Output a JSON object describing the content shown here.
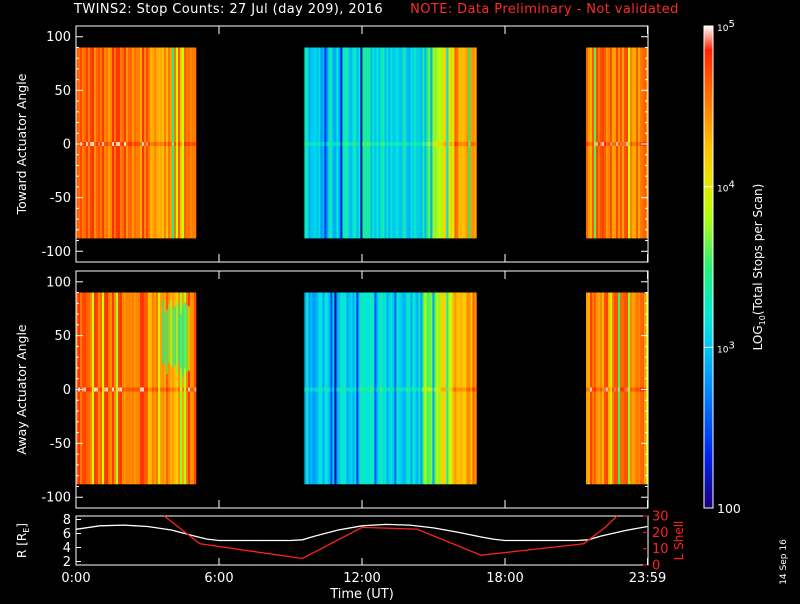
{
  "header": {
    "title": "TWINS2: Stop Counts: 27 Jul (day 209), 2016",
    "note": "NOTE: Data Preliminary - Not validated",
    "note_color": "#ff2a2a"
  },
  "colorbar": {
    "label": "LOG",
    "label_sub": "10",
    "label_rest": "(Total Stops per Scan)",
    "ticks": [
      {
        "value": 100,
        "text": "100"
      },
      {
        "value": 1000,
        "text": "10",
        "sup": "3"
      },
      {
        "value": 10000,
        "text": "10",
        "sup": "4"
      },
      {
        "value": 100000,
        "text": "10",
        "sup": "5"
      }
    ],
    "range": [
      100,
      100000
    ],
    "scale": "log"
  },
  "stamp": "14 Sep 16",
  "chart_data": [
    {
      "type": "heatmap",
      "ylabel": "Toward Actuator Angle",
      "ylim": [
        -110,
        110
      ],
      "yticks": [
        -100,
        -50,
        0,
        50,
        100
      ],
      "x_range_hours": [
        0,
        24
      ],
      "data_y_range": [
        -88,
        90
      ],
      "data_segments_hours": [
        [
          -0.2,
          5.0
        ],
        [
          9.5,
          16.8
        ],
        [
          21.4,
          24.0
        ]
      ],
      "value_range": [
        100,
        100000
      ],
      "colormap": "rainbow",
      "scale": "log"
    },
    {
      "type": "heatmap",
      "ylabel": "Away Actuator Angle",
      "ylim": [
        -110,
        110
      ],
      "yticks": [
        -100,
        -50,
        0,
        50,
        100
      ],
      "x_range_hours": [
        0,
        24
      ],
      "data_y_range": [
        -88,
        90
      ],
      "data_segments_hours": [
        [
          -0.2,
          5.0
        ],
        [
          9.5,
          16.8
        ],
        [
          21.4,
          24.0
        ]
      ],
      "value_range": [
        100,
        100000
      ],
      "colormap": "rainbow",
      "scale": "log"
    },
    {
      "type": "line",
      "xlabel": "Time (UT)",
      "x_ticks": [
        {
          "value": 0,
          "text": "0:00"
        },
        {
          "value": 6,
          "text": "6:00"
        },
        {
          "value": 12,
          "text": "12:00"
        },
        {
          "value": 18,
          "text": "18:00"
        },
        {
          "value": 23.98,
          "text": "23:59"
        }
      ],
      "left_axis": {
        "label": "R [R",
        "label_sub": "E",
        "label_end": "]",
        "ylim": [
          1.5,
          8.5
        ],
        "ticks": [
          2,
          4,
          6,
          8
        ],
        "color": "#ffffff"
      },
      "right_axis": {
        "label": "L Shell",
        "ylim": [
          0,
          30
        ],
        "ticks": [
          0,
          10,
          20,
          30
        ],
        "color": "#ff2020"
      },
      "series": [
        {
          "axis": "left",
          "color": "#ffffff",
          "x": [
            0,
            1,
            2,
            3,
            4,
            5,
            5.5,
            6,
            7,
            8,
            9,
            9.5,
            10,
            11,
            12,
            13,
            14,
            15,
            16,
            17,
            17.5,
            18,
            19,
            20,
            21,
            21.5,
            22,
            23,
            23.98
          ],
          "y": [
            6.6,
            7.1,
            7.2,
            7.0,
            6.5,
            5.6,
            5.2,
            5.0,
            5.0,
            5.0,
            5.0,
            5.1,
            5.6,
            6.5,
            7.1,
            7.3,
            7.2,
            6.8,
            6.2,
            5.5,
            5.2,
            5.0,
            5.0,
            5.0,
            5.0,
            5.1,
            5.6,
            6.4,
            7.0
          ]
        },
        {
          "axis": "right",
          "color": "#ff2020",
          "x": [
            3.7,
            5.2,
            9.5,
            12.0,
            14.3,
            17.0,
            21.3,
            22.2,
            22.7
          ],
          "y": [
            30,
            13,
            4,
            23,
            22,
            6,
            13,
            23,
            30
          ]
        }
      ]
    }
  ]
}
